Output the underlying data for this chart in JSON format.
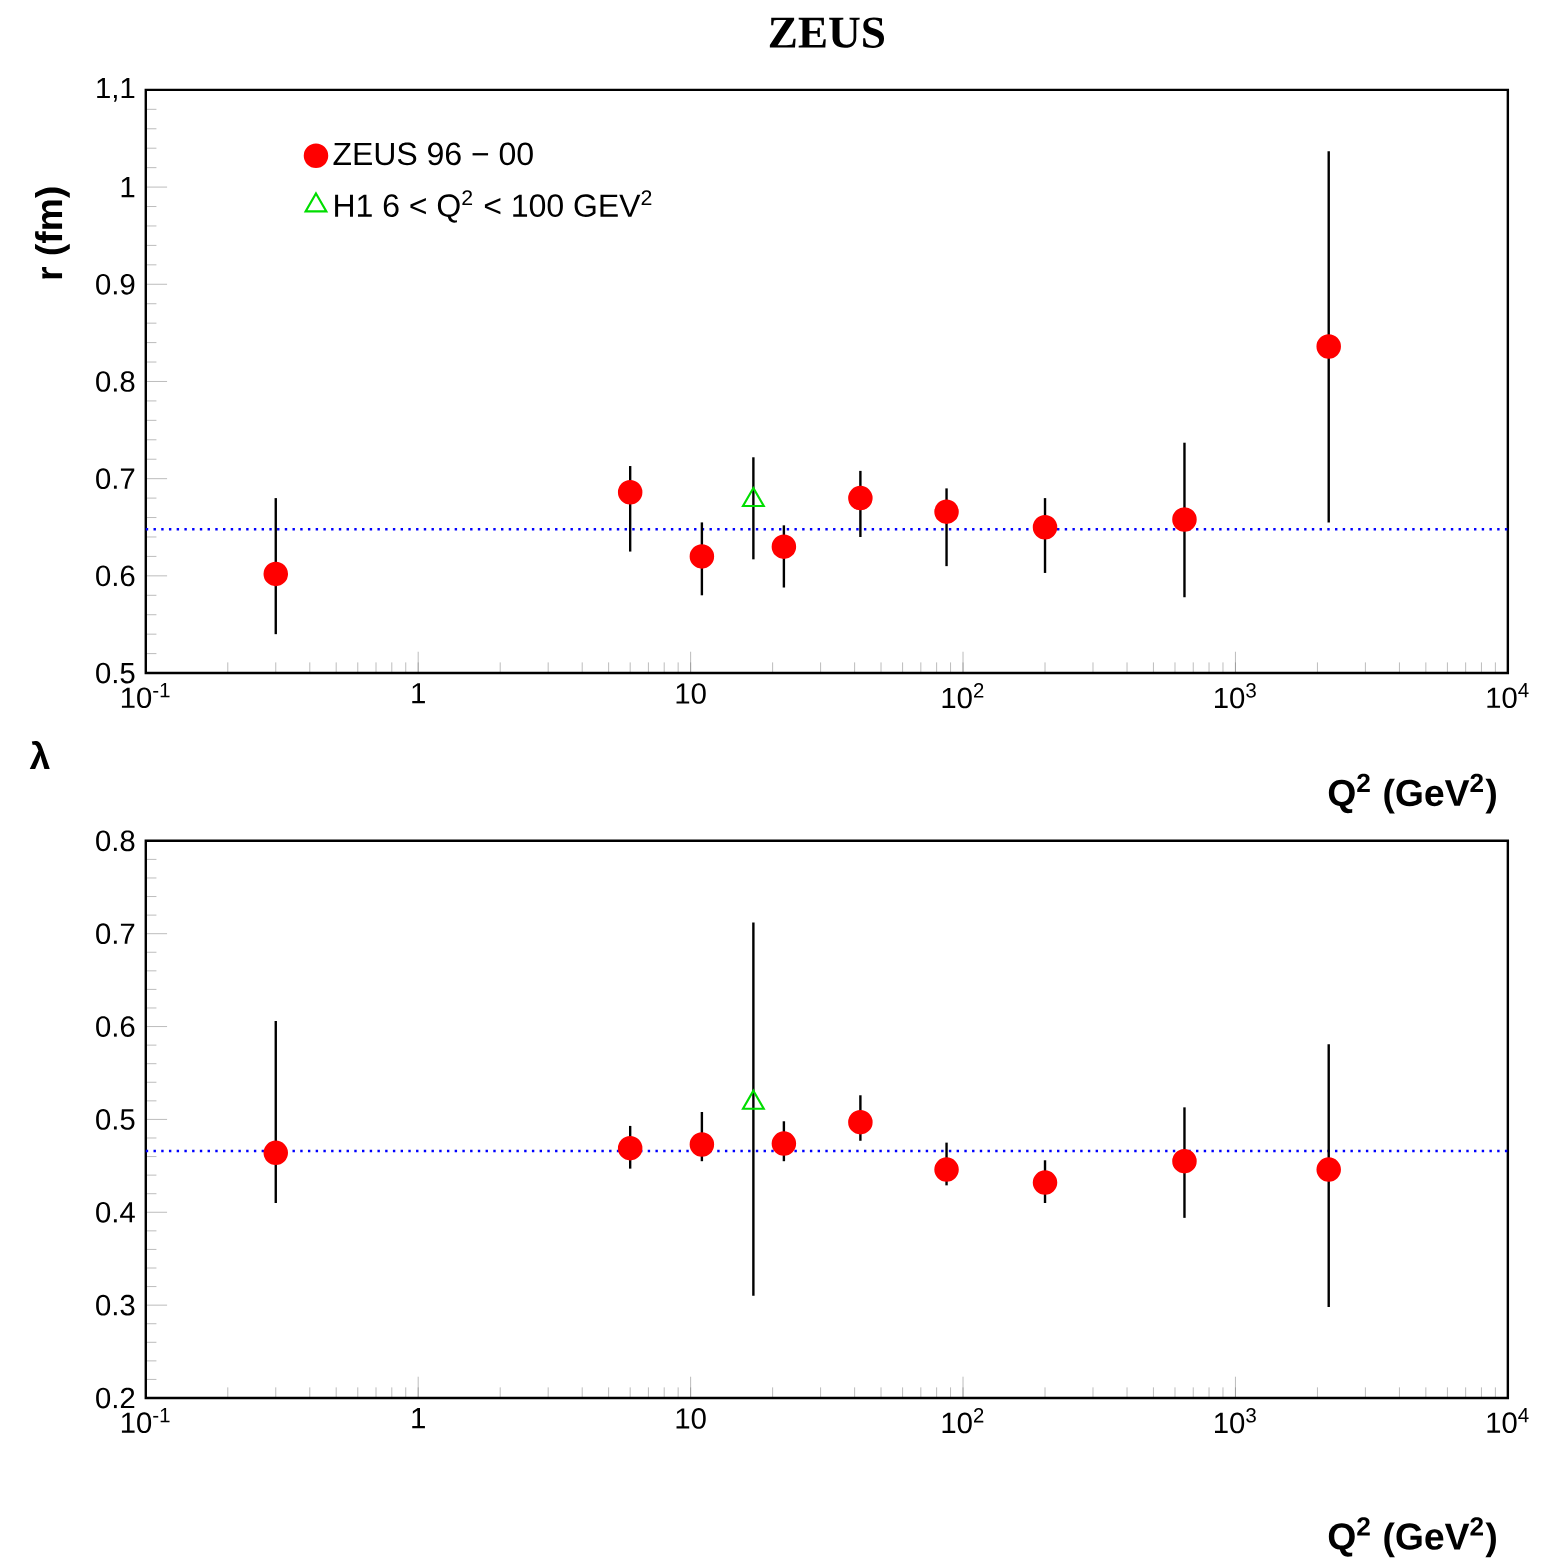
{
  "chart_data": [
    {
      "type": "scatter",
      "title": "ZEUS",
      "xlabel": "Q$^{2}$ (GeV$^{2}$)",
      "ylabel": "r (fm)",
      "log": "x",
      "legend": "top left",
      "xlim": [
        0.1,
        10000
      ],
      "xticks": [
        {
          "value": 0.1,
          "label": "10$^{-1}$"
        },
        1,
        10,
        {
          "value": 100,
          "label": "10$^{2}$"
        },
        {
          "value": 1000,
          "label": "10$^{3}$"
        },
        {
          "value": 10000,
          "label": "10$^{4}$"
        }
      ],
      "ylim": [
        0.5,
        1.1
      ],
      "yticks": [
        0.5,
        0.6,
        0.7,
        0.8,
        0.9,
        1,
        {
          "value": 1.1,
          "label": "1,1"
        }
      ],
      "ref_lines": [
        {
          "axis": "y",
          "value": 0.648,
          "color": "#0000ff",
          "line_style": "dotted"
        }
      ],
      "series": [
        {
          "name": "ZEUS 96 − 00",
          "color": "#ff0000",
          "marker": "circle",
          "x": [
            0.3,
            6,
            11,
            22,
            42,
            87,
            200,
            650,
            2200
          ],
          "values": [
            0.602,
            0.686,
            0.62,
            0.63,
            0.68,
            0.666,
            0.65,
            0.658,
            0.836
          ],
          "errors": [
            [
              0.54,
              0.68
            ],
            [
              0.625,
              0.713
            ],
            [
              0.58,
              0.655
            ],
            [
              0.588,
              0.652
            ],
            [
              0.64,
              0.708
            ],
            [
              0.61,
              0.69
            ],
            [
              0.603,
              0.68
            ],
            [
              0.578,
              0.737
            ],
            [
              0.655,
              1.037
            ]
          ]
        },
        {
          "name": "H1 6 < Q$^{2}$ < 100 GEV$^{2}$",
          "color": "#00dd00",
          "marker": "triangle",
          "x": [
            17
          ],
          "values": [
            0.678
          ],
          "errors": [
            [
              0.617,
              0.722
            ]
          ]
        }
      ]
    },
    {
      "type": "scatter",
      "xlabel": "Q$^{2}$ (GeV$^{2}$)",
      "ylabel": "λ",
      "log": "x",
      "legend": false,
      "xlim": [
        0.1,
        10000
      ],
      "xticks": [
        {
          "value": 0.1,
          "label": "10$^{-1}$"
        },
        1,
        10,
        {
          "value": 100,
          "label": "10$^{2}$"
        },
        {
          "value": 1000,
          "label": "10$^{3}$"
        },
        {
          "value": 10000,
          "label": "10$^{4}$"
        }
      ],
      "ylim": [
        0.2,
        0.8
      ],
      "yticks": [
        0.2,
        0.3,
        0.4,
        0.5,
        0.6,
        0.7,
        0.8
      ],
      "ref_lines": [
        {
          "axis": "y",
          "value": 0.466,
          "color": "#0000ff",
          "line_style": "dotted"
        }
      ],
      "series": [
        {
          "color": "#ff0000",
          "marker": "circle",
          "x": [
            0.3,
            6,
            11,
            22,
            42,
            87,
            200,
            650,
            2200
          ],
          "values": [
            0.464,
            0.469,
            0.473,
            0.474,
            0.497,
            0.446,
            0.432,
            0.455,
            0.446
          ],
          "errors": [
            [
              0.41,
              0.606
            ],
            [
              0.447,
              0.493
            ],
            [
              0.455,
              0.508
            ],
            [
              0.455,
              0.498
            ],
            [
              0.477,
              0.526
            ],
            [
              0.429,
              0.475
            ],
            [
              0.41,
              0.456
            ],
            [
              0.394,
              0.513
            ],
            [
              0.298,
              0.581
            ]
          ]
        },
        {
          "color": "#00dd00",
          "marker": "triangle",
          "x": [
            17
          ],
          "values": [
            0.518
          ],
          "errors": [
            [
              0.31,
              0.712
            ]
          ]
        }
      ]
    }
  ]
}
